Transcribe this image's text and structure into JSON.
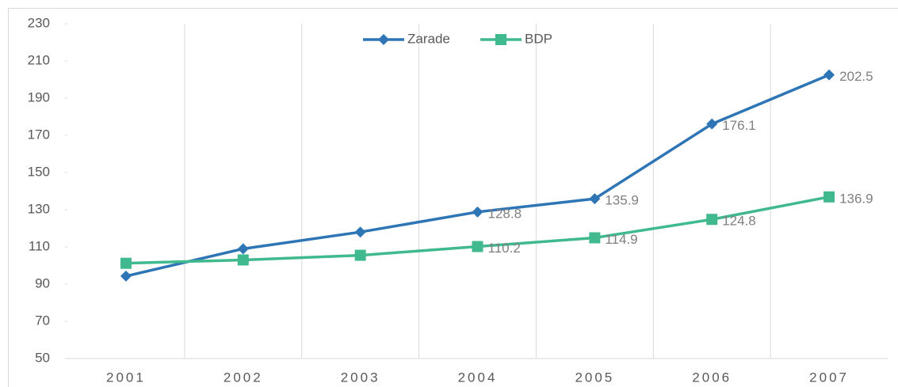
{
  "chart_data": {
    "type": "line",
    "categories": [
      "2001",
      "2002",
      "2003",
      "2004",
      "2005",
      "2006",
      "2007"
    ],
    "series": [
      {
        "name": "Zarade",
        "color": "#2e75b6",
        "marker": "diamond",
        "values": [
          94.3,
          109,
          118,
          128.8,
          135.9,
          176.1,
          202.5
        ],
        "value_labels": [
          null,
          null,
          null,
          "128.8",
          "135.9",
          "176.1",
          "202.5"
        ]
      },
      {
        "name": "BDP",
        "color": "#3fb98d",
        "marker": "square",
        "values": [
          101.2,
          103,
          105.5,
          110.2,
          114.9,
          124.8,
          136.9
        ],
        "value_labels": [
          null,
          null,
          null,
          "110.2",
          "114.9",
          "124.8",
          "136.9"
        ]
      }
    ],
    "ylim": [
      50,
      230
    ],
    "yticks": [
      50,
      70,
      90,
      110,
      130,
      150,
      170,
      190,
      210,
      230
    ],
    "grid": "vertical",
    "legend": "top"
  }
}
